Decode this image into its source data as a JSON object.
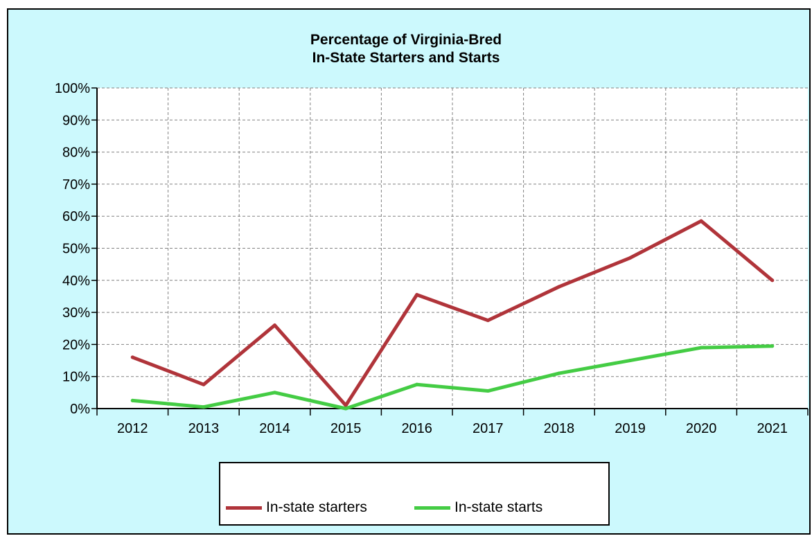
{
  "chart_data": {
    "type": "line",
    "title_lines": [
      "Percentage of Virginia-Bred",
      "In-State Starters and Starts"
    ],
    "categories": [
      "2012",
      "2013",
      "2014",
      "2015",
      "2016",
      "2017",
      "2018",
      "2019",
      "2020",
      "2021"
    ],
    "y_ticks": [
      "0%",
      "10%",
      "20%",
      "30%",
      "40%",
      "50%",
      "60%",
      "70%",
      "80%",
      "90%",
      "100%"
    ],
    "ylim": [
      0,
      100
    ],
    "grid": true,
    "legend_position": "bottom",
    "series": [
      {
        "name": "In-state starters",
        "color": "#b0343a",
        "values": [
          16,
          7.5,
          26,
          1,
          35.5,
          27.5,
          38,
          47,
          58.5,
          40
        ]
      },
      {
        "name": "In-state starts",
        "color": "#44cc44",
        "values": [
          2.5,
          0.5,
          5,
          0,
          7.5,
          5.5,
          11,
          15,
          19,
          19.5
        ]
      }
    ],
    "background_color": "#ccf9fd"
  }
}
